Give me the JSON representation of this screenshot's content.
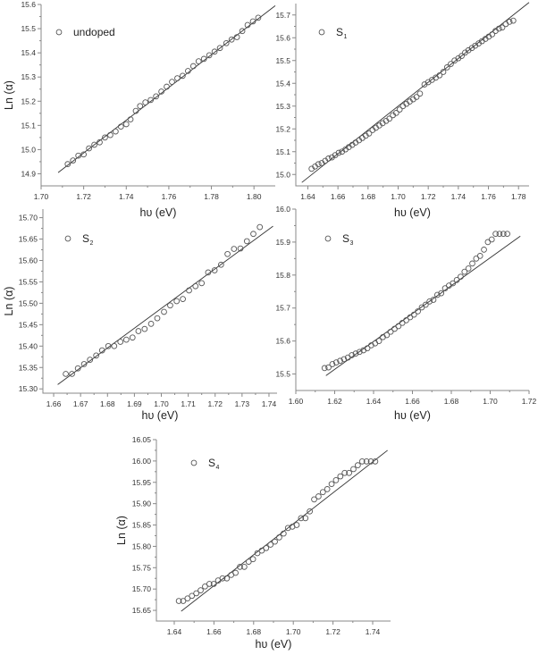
{
  "figure": {
    "description": "Ln(alpha) vs photon energy plots for undoped and doped samples S1-S4"
  },
  "chart_data": [
    {
      "id": "undoped",
      "type": "scatter",
      "legend": {
        "label": "undoped",
        "subscript": ""
      },
      "xlabel": "hυ (eV)",
      "ylabel": "Ln (α)",
      "xlim": [
        1.7,
        1.81
      ],
      "ylim": [
        14.85,
        15.6
      ],
      "xticks": [
        "1.70",
        "1.72",
        "1.74",
        "1.76",
        "1.78",
        "1.80"
      ],
      "yticks": [
        "14.9",
        "15.0",
        "15.1",
        "15.2",
        "15.3",
        "15.4",
        "15.5",
        "15.6"
      ],
      "fit_line": {
        "x": [
          1.708,
          1.81
        ],
        "y": [
          14.905,
          15.595
        ]
      },
      "x": [
        1.7125,
        1.715,
        1.7175,
        1.72,
        1.7225,
        1.725,
        1.7275,
        1.73,
        1.7325,
        1.735,
        1.7375,
        1.74,
        1.742,
        1.7445,
        1.7465,
        1.749,
        1.7515,
        1.754,
        1.7565,
        1.759,
        1.7615,
        1.764,
        1.7665,
        1.769,
        1.7715,
        1.774,
        1.7765,
        1.779,
        1.7815,
        1.784,
        1.787,
        1.7895,
        1.792,
        1.7945,
        1.797,
        1.7995,
        1.802
      ],
      "y": [
        14.94,
        14.955,
        14.975,
        14.98,
        15.005,
        15.02,
        15.03,
        15.05,
        15.06,
        15.075,
        15.095,
        15.105,
        15.125,
        15.16,
        15.18,
        15.195,
        15.205,
        15.22,
        15.24,
        15.26,
        15.28,
        15.295,
        15.305,
        15.325,
        15.345,
        15.365,
        15.375,
        15.39,
        15.405,
        15.42,
        15.44,
        15.455,
        15.465,
        15.49,
        15.515,
        15.53,
        15.545
      ]
    },
    {
      "id": "S1",
      "type": "scatter",
      "legend": {
        "label": "S",
        "subscript": "1"
      },
      "xlabel": "hυ (eV)",
      "ylabel": "",
      "xlim": [
        1.632,
        1.787
      ],
      "ylim": [
        14.95,
        15.75
      ],
      "xticks": [
        "1.64",
        "1.66",
        "1.68",
        "1.70",
        "1.72",
        "1.74",
        "1.76",
        "1.78"
      ],
      "yticks": [
        "15.0",
        "15.1",
        "15.2",
        "15.3",
        "15.4",
        "15.5",
        "15.6",
        "15.7"
      ],
      "fit_line": {
        "x": [
          1.636,
          1.787
        ],
        "y": [
          14.965,
          15.755
        ]
      },
      "x": [
        1.6425,
        1.6448,
        1.647,
        1.6492,
        1.6515,
        1.6537,
        1.656,
        1.6582,
        1.6605,
        1.6627,
        1.665,
        1.6672,
        1.6695,
        1.6717,
        1.674,
        1.6762,
        1.6785,
        1.6807,
        1.683,
        1.6852,
        1.6875,
        1.6897,
        1.692,
        1.6942,
        1.6965,
        1.6987,
        1.701,
        1.7032,
        1.7055,
        1.7077,
        1.71,
        1.7122,
        1.7145,
        1.7175,
        1.72,
        1.7225,
        1.725,
        1.7275,
        1.73,
        1.7325,
        1.735,
        1.7375,
        1.74,
        1.7422,
        1.7445,
        1.7467,
        1.749,
        1.7512,
        1.7535,
        1.7557,
        1.758,
        1.7602,
        1.7625,
        1.7647,
        1.767,
        1.7692,
        1.7715,
        1.774,
        1.7765
      ],
      "y": [
        15.025,
        15.035,
        15.045,
        15.05,
        15.06,
        15.07,
        15.075,
        15.085,
        15.095,
        15.1,
        15.11,
        15.12,
        15.13,
        15.14,
        15.15,
        15.16,
        15.17,
        15.18,
        15.195,
        15.205,
        15.215,
        15.225,
        15.235,
        15.245,
        15.26,
        15.27,
        15.285,
        15.3,
        15.31,
        15.32,
        15.33,
        15.34,
        15.355,
        15.395,
        15.405,
        15.415,
        15.425,
        15.435,
        15.45,
        15.47,
        15.485,
        15.5,
        15.51,
        15.52,
        15.535,
        15.545,
        15.555,
        15.565,
        15.575,
        15.585,
        15.595,
        15.605,
        15.615,
        15.63,
        15.64,
        15.645,
        15.66,
        15.67,
        15.675
      ]
    },
    {
      "id": "S2",
      "type": "scatter",
      "legend": {
        "label": "S",
        "subscript": "2"
      },
      "xlabel": "hυ (eV)",
      "ylabel": "Ln (α)",
      "xlim": [
        1.656,
        1.743
      ],
      "ylim": [
        15.29,
        15.72
      ],
      "xticks": [
        "1.66",
        "1.67",
        "1.68",
        "1.69",
        "1.70",
        "1.71",
        "1.72",
        "1.73",
        "1.74"
      ],
      "yticks": [
        "15.30",
        "15.35",
        "15.40",
        "15.45",
        "15.50",
        "15.55",
        "15.60",
        "15.65",
        "15.70"
      ],
      "fit_line": {
        "x": [
          1.6615,
          1.7415
        ],
        "y": [
          15.31,
          15.68
        ]
      },
      "x": [
        1.6645,
        1.6668,
        1.669,
        1.6713,
        1.6735,
        1.6758,
        1.678,
        1.6803,
        1.6825,
        1.6848,
        1.687,
        1.6893,
        1.6915,
        1.6938,
        1.6962,
        1.6985,
        1.701,
        1.7033,
        1.7057,
        1.708,
        1.7103,
        1.7127,
        1.715,
        1.7174,
        1.7198,
        1.7222,
        1.7246,
        1.727,
        1.7294,
        1.7318,
        1.7342,
        1.7366
      ],
      "y": [
        15.335,
        15.335,
        15.348,
        15.358,
        15.368,
        15.378,
        15.39,
        15.4,
        15.4,
        15.41,
        15.415,
        15.42,
        15.435,
        15.44,
        15.452,
        15.465,
        15.48,
        15.495,
        15.505,
        15.51,
        15.53,
        15.54,
        15.547,
        15.572,
        15.577,
        15.59,
        15.615,
        15.627,
        15.628,
        15.645,
        15.662,
        15.678
      ]
    },
    {
      "id": "S3",
      "type": "scatter",
      "legend": {
        "label": "S",
        "subscript": "3"
      },
      "xlabel": "hυ (eV)",
      "ylabel": "",
      "xlim": [
        1.6,
        1.72
      ],
      "ylim": [
        15.45,
        16.0
      ],
      "xticks": [
        "1.60",
        "1.62",
        "1.64",
        "1.66",
        "1.68",
        "1.70",
        "1.72"
      ],
      "yticks": [
        "15.5",
        "15.6",
        "15.7",
        "15.8",
        "15.9",
        "16.0"
      ],
      "fit_line": {
        "x": [
          1.6155,
          1.7155
        ],
        "y": [
          15.495,
          15.918
        ]
      },
      "x": [
        1.6148,
        1.6168,
        1.6188,
        1.6208,
        1.6228,
        1.6248,
        1.6268,
        1.6288,
        1.6308,
        1.6328,
        1.6348,
        1.6368,
        1.6388,
        1.6408,
        1.6428,
        1.6448,
        1.6468,
        1.6488,
        1.6508,
        1.6528,
        1.6548,
        1.6568,
        1.6588,
        1.6608,
        1.6628,
        1.6648,
        1.6668,
        1.6688,
        1.6708,
        1.6728,
        1.6748,
        1.6768,
        1.6788,
        1.6808,
        1.6828,
        1.6848,
        1.6868,
        1.6888,
        1.6908,
        1.6928,
        1.6948,
        1.6968,
        1.6988,
        1.7008,
        1.7028,
        1.7048,
        1.7068,
        1.7088
      ],
      "y": [
        15.518,
        15.52,
        15.53,
        15.535,
        15.54,
        15.545,
        15.55,
        15.557,
        15.562,
        15.567,
        15.572,
        15.578,
        15.587,
        15.593,
        15.6,
        15.612,
        15.618,
        15.628,
        15.637,
        15.645,
        15.655,
        15.663,
        15.672,
        15.68,
        15.69,
        15.702,
        15.71,
        15.72,
        15.725,
        15.74,
        15.745,
        15.76,
        15.768,
        15.775,
        15.785,
        15.795,
        15.81,
        15.82,
        15.835,
        15.85,
        15.858,
        15.877,
        15.9,
        15.908,
        15.925,
        15.925,
        15.925,
        15.925
      ]
    },
    {
      "id": "S4",
      "type": "scatter",
      "legend": {
        "label": "S",
        "subscript": "4"
      },
      "xlabel": "hυ (eV)",
      "ylabel": "Ln (α)",
      "xlim": [
        1.631,
        1.749
      ],
      "ylim": [
        15.625,
        16.05
      ],
      "xticks": [
        "1.64",
        "1.66",
        "1.68",
        "1.70",
        "1.72",
        "1.74"
      ],
      "yticks": [
        "15.65",
        "15.70",
        "15.75",
        "15.80",
        "15.85",
        "15.90",
        "15.95",
        "16.00",
        "16.05"
      ],
      "fit_line": {
        "x": [
          1.6435,
          1.7475
        ],
        "y": [
          15.648,
          16.025
        ]
      },
      "x": [
        1.6423,
        1.6445,
        1.6467,
        1.6489,
        1.6511,
        1.6533,
        1.6555,
        1.6577,
        1.6599,
        1.6621,
        1.6643,
        1.6665,
        1.6687,
        1.6709,
        1.6731,
        1.6753,
        1.6775,
        1.6797,
        1.6819,
        1.6841,
        1.6863,
        1.6885,
        1.6907,
        1.6929,
        1.6951,
        1.6973,
        1.6995,
        1.7017,
        1.7039,
        1.7061,
        1.7083,
        1.7105,
        1.7127,
        1.7149,
        1.7171,
        1.7193,
        1.7215,
        1.7237,
        1.7259,
        1.7281,
        1.7303,
        1.7325,
        1.7347,
        1.7369,
        1.7391,
        1.7413
      ],
      "y": [
        15.672,
        15.672,
        15.678,
        15.684,
        15.69,
        15.697,
        15.706,
        15.712,
        15.712,
        15.72,
        15.725,
        15.725,
        15.733,
        15.738,
        15.752,
        15.752,
        15.764,
        15.77,
        15.784,
        15.79,
        15.796,
        15.804,
        15.811,
        15.821,
        15.83,
        15.843,
        15.846,
        15.85,
        15.866,
        15.866,
        15.882,
        15.91,
        15.917,
        15.927,
        15.934,
        15.946,
        15.955,
        15.964,
        15.972,
        15.972,
        15.981,
        15.99,
        15.999,
        15.999,
        15.999,
        15.999
      ]
    }
  ],
  "layout_hints": {
    "grid": false,
    "legend_position": "upper-left",
    "marker": "open-circle",
    "fit": "linear"
  }
}
